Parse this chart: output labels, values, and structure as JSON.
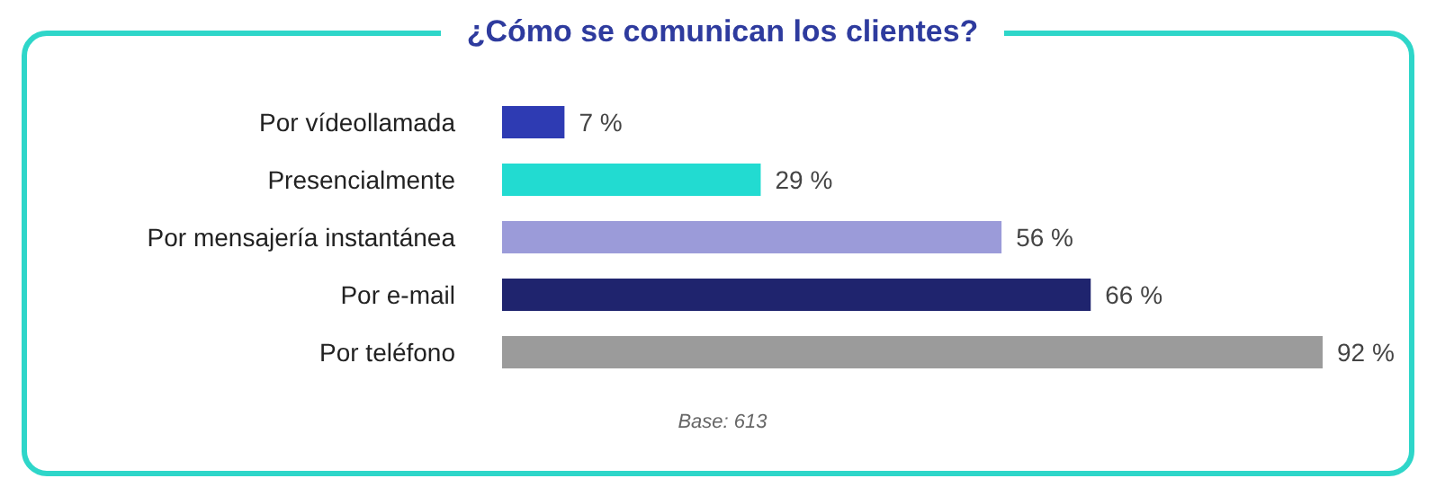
{
  "chart_data": {
    "type": "bar",
    "orientation": "horizontal",
    "title": "¿Cómo se comunican los clientes?",
    "categories": [
      "Por vídeollamada",
      "Presencialmente",
      "Por mensajería instantánea",
      "Por e-mail",
      "Por teléfono"
    ],
    "values": [
      7,
      29,
      56,
      66,
      92
    ],
    "colors": [
      "#2e3bb3",
      "#22dbd1",
      "#9b9bd9",
      "#1f246e",
      "#9b9b9b"
    ],
    "value_labels": [
      "7 %",
      "29 %",
      "56 %",
      "66 %",
      "92 %"
    ],
    "annotations": [
      "Base: 613"
    ],
    "grid": false,
    "legend": false
  }
}
